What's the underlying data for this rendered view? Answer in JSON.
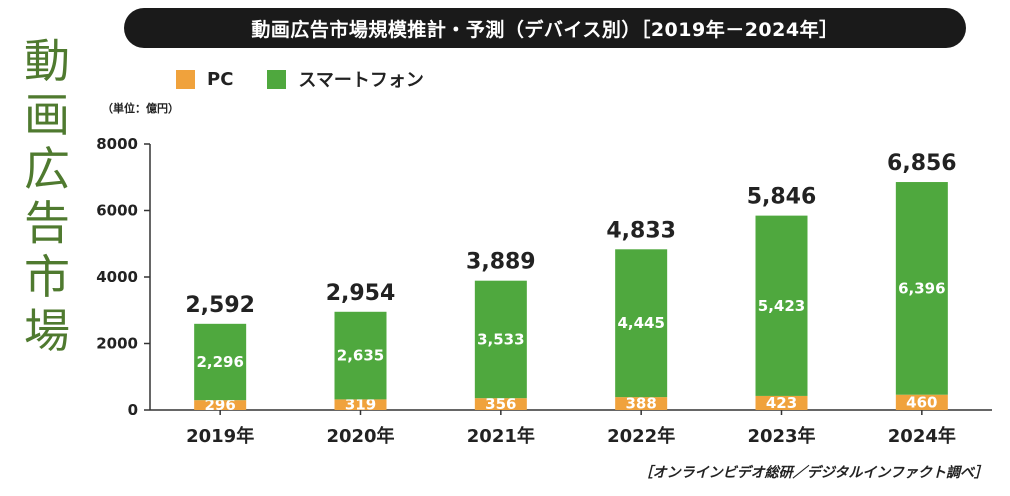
{
  "title": "動画広告市場規模推計・予測（デバイス別）［2019年－2024年］",
  "side_title": [
    "動",
    "画",
    "広",
    "告",
    "市",
    "場"
  ],
  "unit_label": "（単位：億円）",
  "source_label": "［オンラインビデオ総研／デジタルインファクト調べ］",
  "colors": {
    "pc": "#f0a23c",
    "smartphone": "#4fa83e",
    "axis": "#333333"
  },
  "legend": [
    {
      "name": "PC",
      "color": "#f0a23c"
    },
    {
      "name": "スマートフォン",
      "color": "#4fa83e"
    }
  ],
  "chart_data": {
    "type": "bar",
    "stacked": true,
    "title": "動画広告市場規模推計・予測（デバイス別）［2019年－2024年］",
    "ylabel": "（単位：億円）",
    "xlabel": "",
    "ylim": [
      0,
      8000
    ],
    "yticks": [
      "0",
      "2000",
      "4000",
      "6000",
      "8000"
    ],
    "yticks_values": [
      0,
      2000,
      4000,
      6000,
      8000
    ],
    "categories": [
      "2019年",
      "2020年",
      "2021年",
      "2022年",
      "2023年",
      "2024年"
    ],
    "series": [
      {
        "name": "PC",
        "values": [
          296,
          319,
          356,
          388,
          423,
          460
        ],
        "labels": [
          "296",
          "319",
          "356",
          "388",
          "423",
          "460"
        ]
      },
      {
        "name": "スマートフォン",
        "values": [
          2296,
          2635,
          3533,
          4445,
          5423,
          6396
        ],
        "labels": [
          "2,296",
          "2,635",
          "3,533",
          "4,445",
          "5,423",
          "6,396"
        ]
      }
    ],
    "totals": [
      2592,
      2954,
      3889,
      4833,
      5846,
      6856
    ],
    "total_labels": [
      "2,592",
      "2,954",
      "3,889",
      "4,833",
      "5,846",
      "6,856"
    ],
    "legend_position": "top-left"
  }
}
